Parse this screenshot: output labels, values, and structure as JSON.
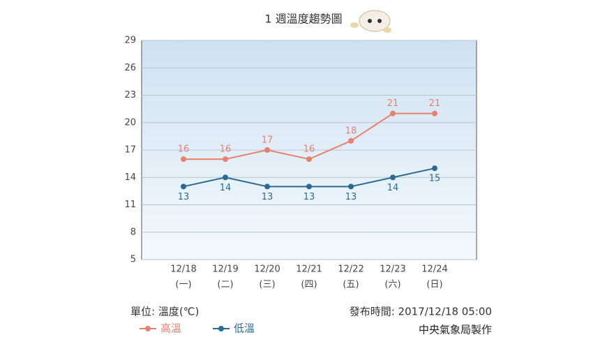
{
  "chart_data": {
    "type": "line",
    "title": "1 週溫度趨勢圖",
    "categories": [
      "12/18",
      "12/19",
      "12/20",
      "12/21",
      "12/22",
      "12/23",
      "12/24"
    ],
    "weekdays": [
      "(一)",
      "(二)",
      "(三)",
      "(四)",
      "(五)",
      "(六)",
      "(日)"
    ],
    "series": [
      {
        "name": "高溫",
        "color": "#e8806e",
        "values": [
          16,
          16,
          17,
          16,
          18,
          21,
          21
        ],
        "label_side": "above"
      },
      {
        "name": "低溫",
        "color": "#2b6a95",
        "values": [
          13,
          14,
          13,
          13,
          13,
          14,
          15
        ],
        "label_side": "below"
      }
    ],
    "ylim": [
      5,
      29
    ],
    "yticks": [
      5,
      8,
      11,
      14,
      17,
      20,
      23,
      26,
      29
    ],
    "grid": true,
    "unit_note": "單位: 溫度(℃)",
    "issued": "發布時間: 2017/12/18 05:00",
    "source": "中央氣象局製作"
  }
}
